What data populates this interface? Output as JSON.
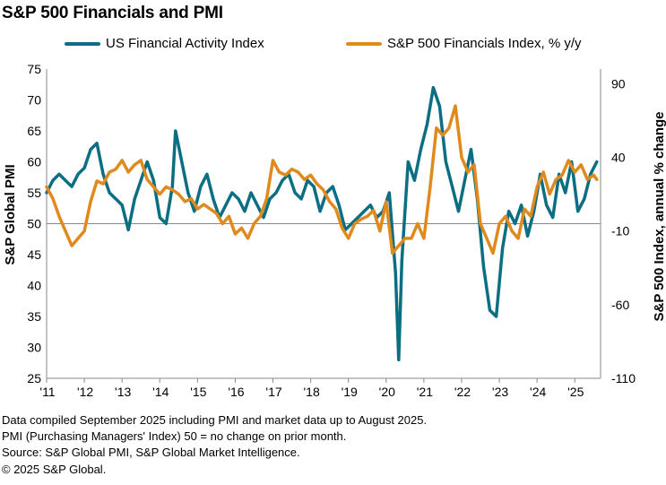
{
  "chart_data": {
    "type": "line",
    "title": "S&P 500 Financials and PMI",
    "ylabel": "S&P Global PMI",
    "y2label": "S&P 500 Index, annual % change",
    "xlabel": "",
    "ylim": [
      25,
      75
    ],
    "y2lim": [
      -110,
      100
    ],
    "yticks": [
      25,
      30,
      35,
      40,
      45,
      50,
      55,
      60,
      65,
      70,
      75
    ],
    "y2ticks": [
      -110,
      -60,
      -10,
      40,
      90
    ],
    "xticks": [
      "'11",
      "'12",
      "'13",
      "'14",
      "'15",
      "'16",
      "'17",
      "'18",
      "'19",
      "'20",
      "'21",
      "'22",
      "'23",
      "'24",
      "'25"
    ],
    "xlim": [
      "2011-01",
      "2025-08"
    ],
    "reference_line": 50,
    "legend_position": "top",
    "grid": false,
    "series": [
      {
        "name": "US Financial Activity Index",
        "axis": "left",
        "color": "#0b6e82",
        "x": [
          "2011-01",
          "2011-03",
          "2011-05",
          "2011-07",
          "2011-09",
          "2011-11",
          "2012-01",
          "2012-03",
          "2012-05",
          "2012-07",
          "2012-09",
          "2012-11",
          "2013-01",
          "2013-03",
          "2013-05",
          "2013-07",
          "2013-09",
          "2013-11",
          "2014-01",
          "2014-03",
          "2014-05",
          "2014-06",
          "2014-08",
          "2014-10",
          "2014-12",
          "2015-02",
          "2015-04",
          "2015-06",
          "2015-08",
          "2015-10",
          "2015-12",
          "2016-02",
          "2016-04",
          "2016-06",
          "2016-08",
          "2016-10",
          "2016-12",
          "2017-02",
          "2017-04",
          "2017-06",
          "2017-08",
          "2017-10",
          "2017-12",
          "2018-02",
          "2018-04",
          "2018-06",
          "2018-08",
          "2018-10",
          "2018-12",
          "2019-02",
          "2019-04",
          "2019-06",
          "2019-08",
          "2019-10",
          "2019-12",
          "2020-02",
          "2020-04",
          "2020-05",
          "2020-06",
          "2020-08",
          "2020-10",
          "2020-12",
          "2021-02",
          "2021-04",
          "2021-06",
          "2021-08",
          "2021-10",
          "2021-12",
          "2022-02",
          "2022-04",
          "2022-06",
          "2022-08",
          "2022-10",
          "2022-12",
          "2023-02",
          "2023-04",
          "2023-06",
          "2023-08",
          "2023-10",
          "2023-12",
          "2024-02",
          "2024-04",
          "2024-06",
          "2024-08",
          "2024-10",
          "2024-12",
          "2025-02",
          "2025-04",
          "2025-06",
          "2025-08"
        ],
        "values": [
          55,
          57,
          58,
          57,
          56,
          58,
          59,
          62,
          63,
          58,
          55,
          54,
          53,
          49,
          54,
          57,
          60,
          57,
          51,
          50,
          56,
          65,
          60,
          55,
          52,
          56,
          58,
          54,
          51,
          53,
          55,
          54,
          52,
          55,
          53,
          51,
          54,
          55,
          57,
          58,
          55,
          54,
          57,
          56,
          52,
          55,
          56,
          53,
          49,
          50,
          51,
          52,
          53,
          51,
          52,
          55,
          42,
          28,
          44,
          60,
          57,
          62,
          66,
          72,
          69,
          60,
          56,
          52,
          57,
          62,
          54,
          43,
          36,
          35,
          46,
          52,
          50,
          53,
          48,
          52,
          58,
          53,
          51,
          58,
          55,
          60,
          52,
          54,
          58,
          60
        ]
      },
      {
        "name": "S&P 500 Financials Index, % y/y",
        "axis": "right",
        "color": "#e08a1e",
        "x": [
          "2011-01",
          "2011-03",
          "2011-05",
          "2011-07",
          "2011-09",
          "2011-11",
          "2012-01",
          "2012-03",
          "2012-05",
          "2012-07",
          "2012-09",
          "2012-11",
          "2013-01",
          "2013-03",
          "2013-05",
          "2013-07",
          "2013-09",
          "2013-11",
          "2014-01",
          "2014-03",
          "2014-05",
          "2014-07",
          "2014-09",
          "2014-11",
          "2015-01",
          "2015-03",
          "2015-05",
          "2015-07",
          "2015-09",
          "2015-11",
          "2016-01",
          "2016-03",
          "2016-05",
          "2016-07",
          "2016-09",
          "2016-11",
          "2017-01",
          "2017-03",
          "2017-05",
          "2017-07",
          "2017-09",
          "2017-11",
          "2018-01",
          "2018-03",
          "2018-05",
          "2018-07",
          "2018-09",
          "2018-11",
          "2019-01",
          "2019-03",
          "2019-05",
          "2019-07",
          "2019-09",
          "2019-11",
          "2020-01",
          "2020-03",
          "2020-05",
          "2020-07",
          "2020-09",
          "2020-11",
          "2021-01",
          "2021-03",
          "2021-05",
          "2021-07",
          "2021-09",
          "2021-11",
          "2022-01",
          "2022-03",
          "2022-05",
          "2022-07",
          "2022-09",
          "2022-11",
          "2023-01",
          "2023-03",
          "2023-05",
          "2023-07",
          "2023-09",
          "2023-11",
          "2024-01",
          "2024-03",
          "2024-05",
          "2024-07",
          "2024-09",
          "2024-11",
          "2025-01",
          "2025-03",
          "2025-05",
          "2025-07",
          "2025-08"
        ],
        "values": [
          20,
          12,
          0,
          -10,
          -20,
          -15,
          -10,
          10,
          24,
          22,
          30,
          32,
          38,
          30,
          35,
          38,
          25,
          20,
          15,
          20,
          18,
          15,
          10,
          12,
          5,
          8,
          5,
          2,
          -5,
          0,
          -12,
          -8,
          -15,
          -5,
          0,
          12,
          38,
          30,
          28,
          32,
          30,
          25,
          28,
          22,
          18,
          10,
          5,
          -8,
          -15,
          -5,
          -2,
          0,
          4,
          -10,
          10,
          -25,
          -20,
          -15,
          -15,
          -5,
          -15,
          20,
          60,
          55,
          60,
          75,
          40,
          30,
          35,
          -5,
          -15,
          -25,
          -5,
          0,
          -10,
          -15,
          5,
          0,
          20,
          30,
          15,
          25,
          28,
          38,
          30,
          35,
          25,
          28,
          25
        ]
      }
    ]
  },
  "legend": {
    "series1_label": "US Financial Activity Index",
    "series2_label": "S&P 500 Financials Index, % y/y"
  },
  "notes": {
    "line1": "Data compiled September 2025 including PMI and market data up to August 2025.",
    "line2": "PMI (Purchasing Managers' Index) 50 = no change on prior month.",
    "line3": "Source: S&P Global PMI, S&P Global Market Intelligence.",
    "line4": "© 2025 S&P Global."
  }
}
